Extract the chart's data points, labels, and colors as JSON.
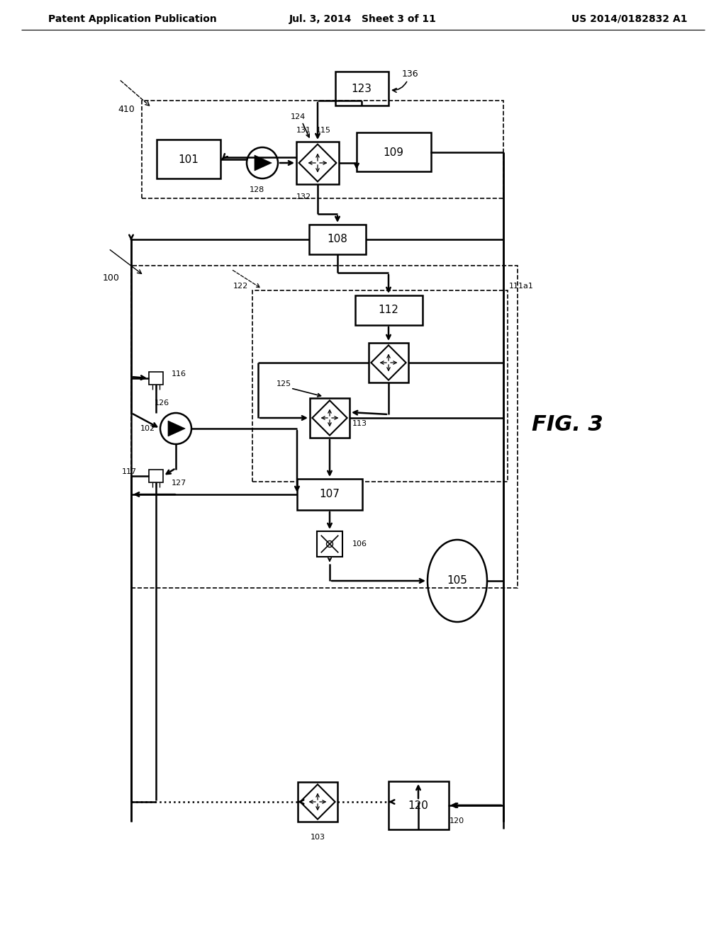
{
  "bg_color": "#ffffff",
  "header_left": "Patent Application Publication",
  "header_center": "Jul. 3, 2014   Sheet 3 of 11",
  "header_right": "US 2014/0182832 A1",
  "fig_label": "FIG. 3"
}
